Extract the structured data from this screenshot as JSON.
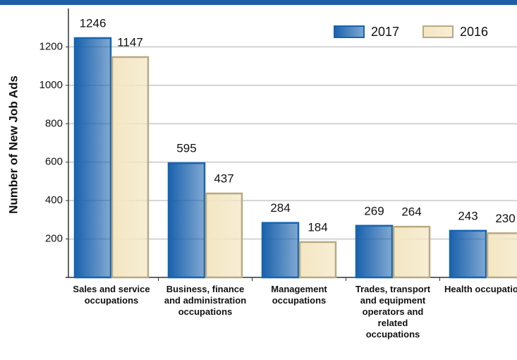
{
  "chart_data": {
    "type": "bar",
    "y_axis_label": "Number of New Job Ads",
    "categories": [
      "Sales and service occupations",
      "Business, finance and administration occupations",
      "Management occupations",
      "Trades, transport and equipment operators and related occupations",
      "Health occupations"
    ],
    "series": [
      {
        "name": "2017",
        "color": "#1a62ad",
        "values": [
          1246,
          595,
          284,
          269,
          243
        ]
      },
      {
        "name": "2016",
        "color": "#f3e6c2",
        "values": [
          1147,
          437,
          184,
          264,
          230
        ]
      }
    ],
    "ylim": [
      0,
      1400
    ],
    "yticks": [
      200,
      400,
      600,
      800,
      1000,
      1200
    ],
    "grid": true,
    "legend": "top-right"
  }
}
